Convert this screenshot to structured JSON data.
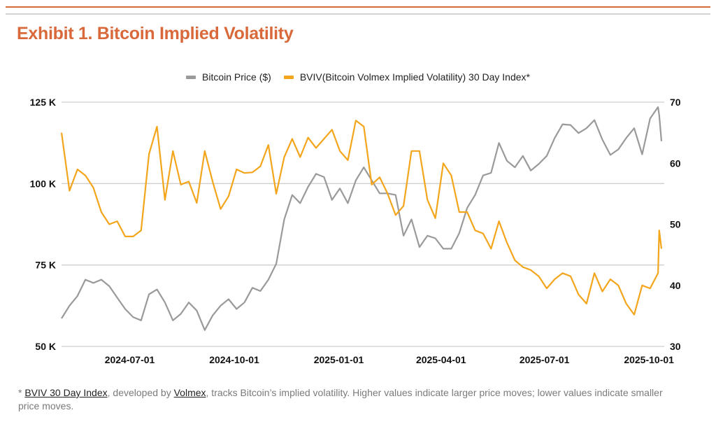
{
  "title": "Exhibit 1. Bitcoin Implied Volatility",
  "colors": {
    "accent": "#D9693A",
    "price": "#9a9a9a",
    "bviv": "#F3A51B",
    "grid": "#cfcfcf"
  },
  "footnote": {
    "prefix": "* ",
    "link1": "BVIV 30 Day Index",
    "mid": ", developed by ",
    "link2": "Volmex",
    "rest": ", tracks Bitcoin’s implied volatility. Higher values indicate larger price moves; lower values indicate smaller price moves."
  },
  "chart_data": {
    "type": "line",
    "grid": true,
    "legend_position": "top-center",
    "xlim": [
      "2024-05-02",
      "2025-10-12"
    ],
    "x_ticks": [
      "2024-07-01",
      "2024-10-01",
      "2025-01-01",
      "2025-04-01",
      "2025-07-01",
      "2025-10-01"
    ],
    "y_left": {
      "lim": [
        50,
        125
      ],
      "ticks": [
        50,
        75,
        100,
        125
      ],
      "tick_labels": [
        "50 K",
        "75 K",
        "100 K",
        "125 K"
      ]
    },
    "y_right": {
      "lim": [
        30,
        70
      ],
      "ticks": [
        30,
        40,
        50,
        60,
        70
      ],
      "tick_labels": [
        "30",
        "40",
        "50",
        "60",
        "70"
      ]
    },
    "dates": [
      "2024-05-02",
      "2024-05-09",
      "2024-05-16",
      "2024-05-23",
      "2024-05-30",
      "2024-06-06",
      "2024-06-13",
      "2024-06-20",
      "2024-06-27",
      "2024-07-04",
      "2024-07-11",
      "2024-07-18",
      "2024-07-25",
      "2024-08-01",
      "2024-08-08",
      "2024-08-15",
      "2024-08-22",
      "2024-08-29",
      "2024-09-05",
      "2024-09-12",
      "2024-09-19",
      "2024-09-26",
      "2024-10-03",
      "2024-10-10",
      "2024-10-17",
      "2024-10-24",
      "2024-10-31",
      "2024-11-07",
      "2024-11-14",
      "2024-11-21",
      "2024-11-28",
      "2024-12-05",
      "2024-12-12",
      "2024-12-19",
      "2024-12-26",
      "2025-01-02",
      "2025-01-09",
      "2025-01-16",
      "2025-01-23",
      "2025-01-30",
      "2025-02-06",
      "2025-02-13",
      "2025-02-20",
      "2025-02-27",
      "2025-03-06",
      "2025-03-13",
      "2025-03-20",
      "2025-03-27",
      "2025-04-03",
      "2025-04-10",
      "2025-04-17",
      "2025-04-24",
      "2025-05-01",
      "2025-05-08",
      "2025-05-15",
      "2025-05-22",
      "2025-05-29",
      "2025-06-05",
      "2025-06-12",
      "2025-06-19",
      "2025-06-26",
      "2025-07-03",
      "2025-07-10",
      "2025-07-17",
      "2025-07-24",
      "2025-07-31",
      "2025-08-07",
      "2025-08-14",
      "2025-08-21",
      "2025-08-28",
      "2025-09-04",
      "2025-09-11",
      "2025-09-18",
      "2025-09-25",
      "2025-10-02",
      "2025-10-09",
      "2025-10-10",
      "2025-10-12"
    ],
    "series": [
      {
        "name": "Bitcoin Price ($)",
        "axis": "left",
        "unit": "K",
        "values": [
          58.6,
          62.5,
          65.5,
          70.5,
          69.5,
          70.5,
          68.5,
          65,
          61.5,
          59,
          58,
          66,
          67.5,
          63.5,
          58,
          60,
          63.5,
          61,
          55,
          59.5,
          62.5,
          64.5,
          61.5,
          63.5,
          68,
          67,
          70.5,
          75.4,
          89,
          96.5,
          94,
          99,
          103,
          102,
          95,
          98.5,
          94,
          101,
          105,
          101,
          97,
          97,
          96.5,
          84,
          89,
          80.5,
          84,
          83.2,
          80,
          80,
          84.8,
          92.5,
          96.5,
          102.5,
          103.3,
          112.5,
          107,
          105,
          108.5,
          104,
          106,
          108.5,
          114,
          118.2,
          118,
          115.5,
          117,
          119.5,
          113.5,
          108.8,
          110.5,
          114,
          117,
          109,
          120,
          123.5,
          121,
          113
        ]
      },
      {
        "name": "BVIV(Bitcoin Volmex Implied Volatility) 30 Day Index*",
        "axis": "right",
        "values": [
          65,
          55.5,
          59,
          58,
          56,
          52,
          50,
          50.5,
          48,
          48,
          49,
          61.5,
          66,
          54,
          62,
          56.5,
          57,
          53.5,
          62,
          57,
          52.5,
          54.6,
          59,
          58.4,
          58.5,
          59.5,
          63,
          55,
          61,
          64,
          61,
          64.2,
          62.5,
          64,
          65.5,
          62,
          60.5,
          67,
          66,
          56.5,
          57.7,
          55,
          51.5,
          53,
          62,
          62,
          54,
          51,
          60,
          58,
          52,
          52,
          49,
          48.5,
          46,
          50.5,
          47,
          44.1,
          43,
          42.5,
          41.5,
          39.5,
          41,
          42,
          41.5,
          38.5,
          37,
          42,
          39,
          41,
          40,
          37,
          35.2,
          40,
          39.5,
          42,
          49,
          46
        ]
      }
    ]
  }
}
